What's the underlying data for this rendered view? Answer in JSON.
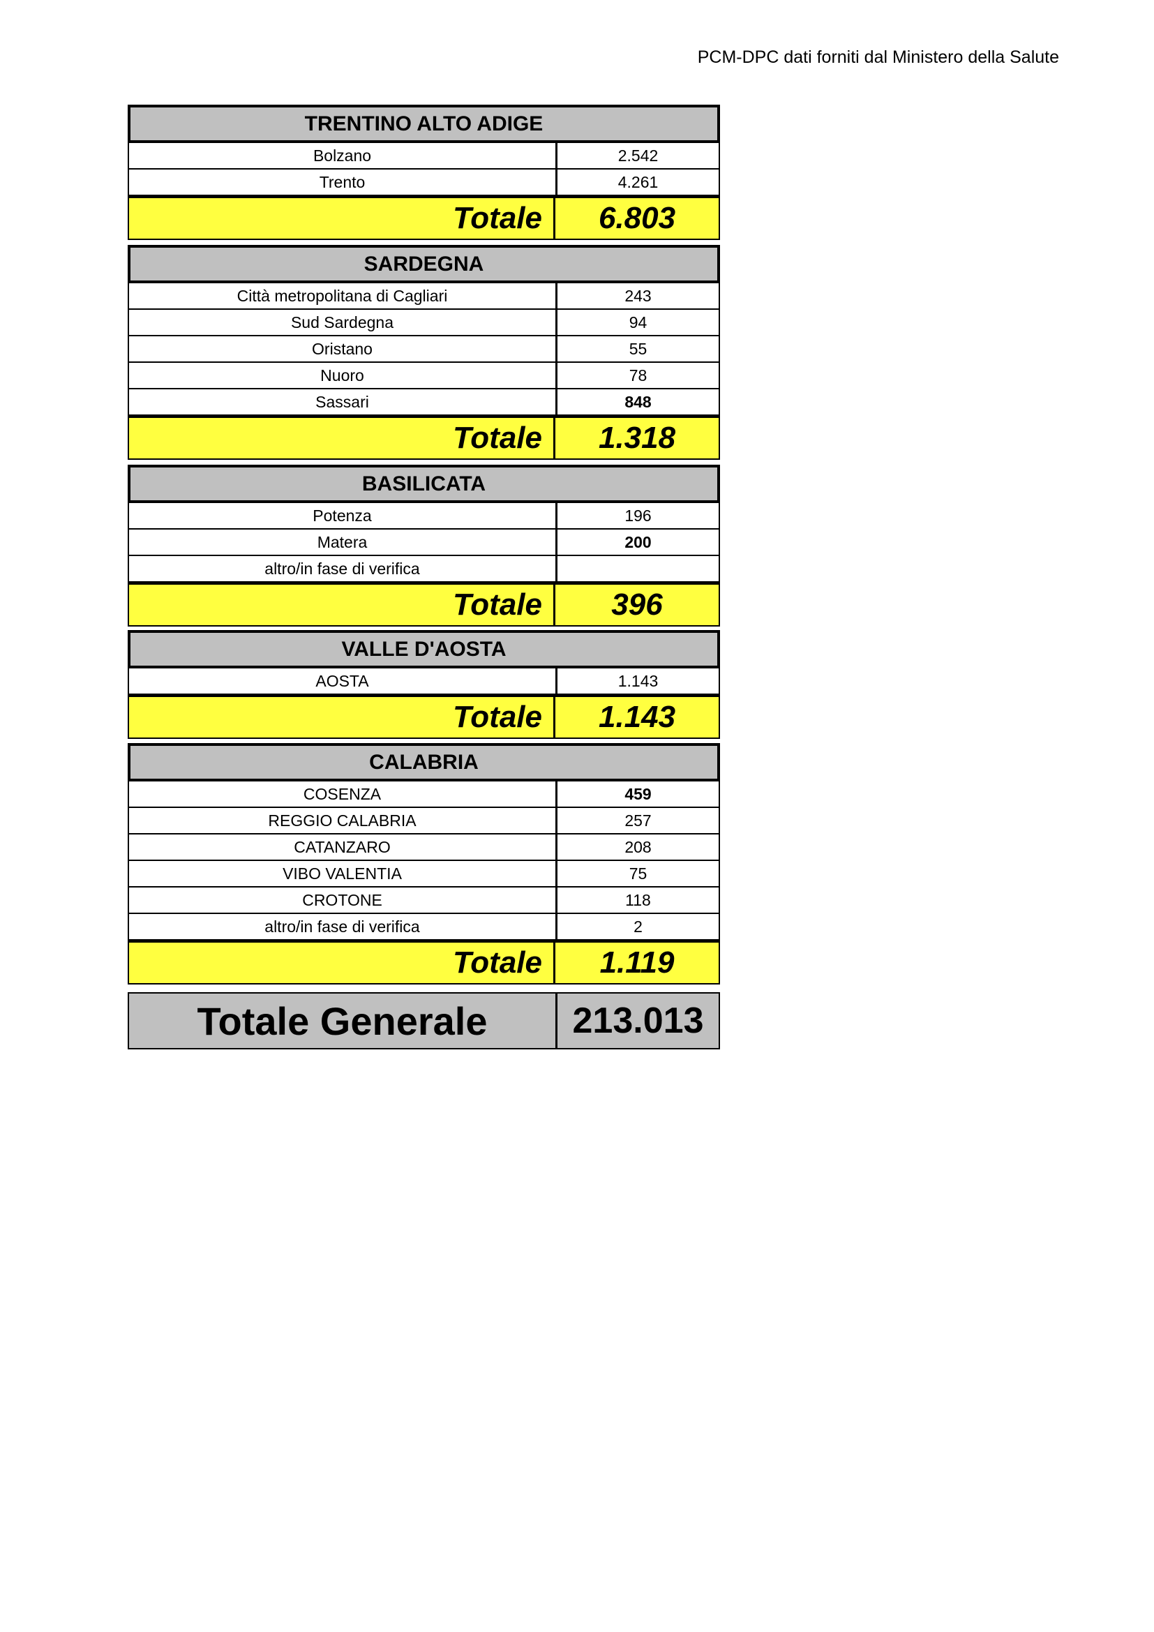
{
  "header": "PCM-DPC dati forniti dal Ministero della Salute",
  "colors": {
    "title_bg": "#c0c0c0",
    "total_bg": "#ffff40"
  },
  "regions": [
    {
      "title": "TRENTINO ALTO ADIGE",
      "rows": [
        {
          "name": "Bolzano",
          "value": "2.542",
          "bold": false
        },
        {
          "name": "Trento",
          "value": "4.261",
          "bold": false
        }
      ],
      "total_label": "Totale",
      "total": "6.803"
    },
    {
      "title": "SARDEGNA",
      "rows": [
        {
          "name": "Città metropolitana di Cagliari",
          "value": "243",
          "bold": false
        },
        {
          "name": "Sud Sardegna",
          "value": "94",
          "bold": false
        },
        {
          "name": "Oristano",
          "value": "55",
          "bold": false
        },
        {
          "name": "Nuoro",
          "value": "78",
          "bold": false
        },
        {
          "name": "Sassari",
          "value": "848",
          "bold": true
        }
      ],
      "total_label": "Totale",
      "total": "1.318"
    },
    {
      "title": "BASILICATA",
      "rows": [
        {
          "name": "Potenza",
          "value": "196",
          "bold": false
        },
        {
          "name": "Matera",
          "value": "200",
          "bold": true
        },
        {
          "name": "altro/in fase di verifica",
          "value": "",
          "bold": false
        }
      ],
      "total_label": "Totale",
      "total": "396"
    },
    {
      "title": "VALLE D'AOSTA",
      "rows": [
        {
          "name": "AOSTA",
          "value": "1.143",
          "bold": false
        }
      ],
      "total_label": "Totale",
      "total": "1.143"
    },
    {
      "title": "CALABRIA",
      "rows": [
        {
          "name": "COSENZA",
          "value": "459",
          "bold": true
        },
        {
          "name": "REGGIO CALABRIA",
          "value": "257",
          "bold": false
        },
        {
          "name": "CATANZARO",
          "value": "208",
          "bold": false
        },
        {
          "name": "VIBO VALENTIA",
          "value": "75",
          "bold": false
        },
        {
          "name": "CROTONE",
          "value": "118",
          "bold": false
        },
        {
          "name": "altro/in fase di verifica",
          "value": "2",
          "bold": false
        }
      ],
      "total_label": "Totale",
      "total": "1.119"
    }
  ],
  "grand_total": {
    "label": "Totale Generale",
    "value": "213.013"
  }
}
